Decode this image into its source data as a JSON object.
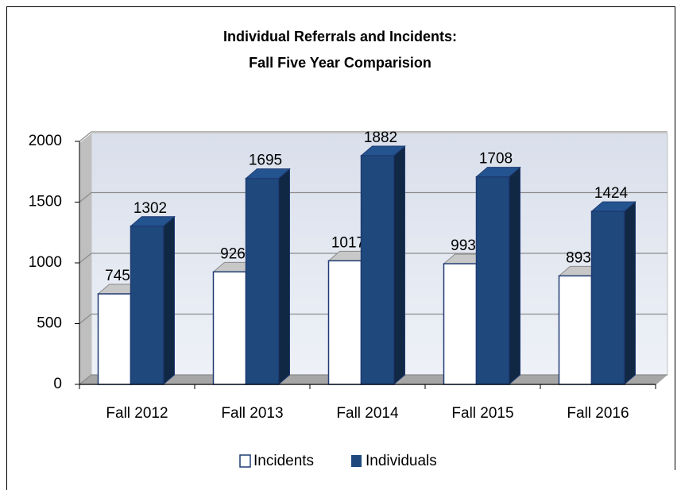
{
  "chart_data": {
    "type": "bar",
    "title": [
      "Individual Referrals and Incidents:",
      "Fall Five Year Comparision"
    ],
    "categories": [
      "Fall 2012",
      "Fall 2013",
      "Fall 2014",
      "Fall 2015",
      "Fall 2016"
    ],
    "series": [
      {
        "name": "Incidents",
        "color": "#ffffff",
        "values": [
          745,
          926,
          1017,
          993,
          893
        ]
      },
      {
        "name": "Individuals",
        "color": "#1f497d",
        "values": [
          1302,
          1695,
          1882,
          1708,
          1424
        ]
      }
    ],
    "ylim": [
      0,
      2000
    ],
    "yticks": [
      0,
      500,
      1000,
      1500,
      2000
    ],
    "grid": true,
    "legend": "bottom"
  }
}
